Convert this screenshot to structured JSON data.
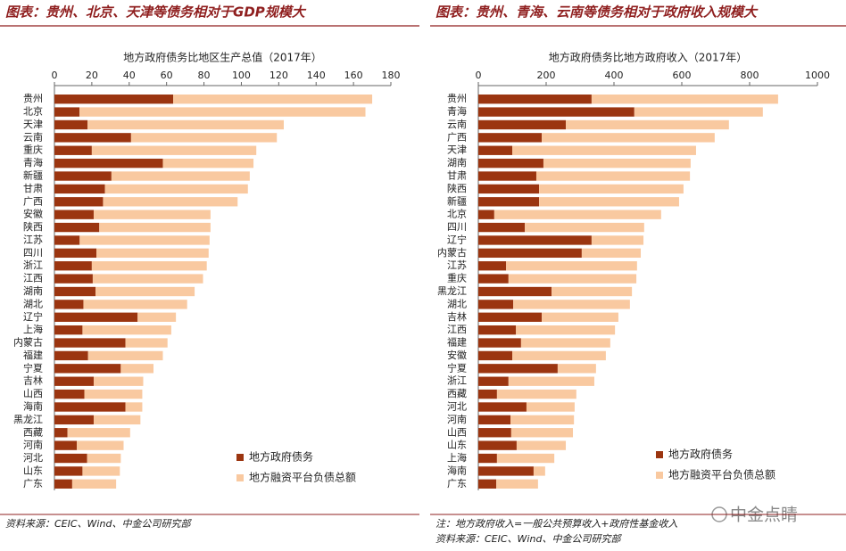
{
  "chart_data": [
    {
      "type": "stacked-bar-horizontal",
      "header": "图表：贵州、北京、天津等债务相对于GDP规模大",
      "title": "地方政府债务比地区生产总值（2017年）",
      "categories": [
        "贵州",
        "北京",
        "天津",
        "云南",
        "重庆",
        "青海",
        "新疆",
        "甘肃",
        "广西",
        "安徽",
        "陕西",
        "江苏",
        "四川",
        "浙江",
        "江西",
        "湖南",
        "湖北",
        "辽宁",
        "上海",
        "内蒙古",
        "福建",
        "宁夏",
        "吉林",
        "山西",
        "海南",
        "黑龙江",
        "西藏",
        "河南",
        "河北",
        "山东",
        "广东"
      ],
      "series": [
        {
          "name": "地方政府债务",
          "color": "#9b3510",
          "values": [
            63.5,
            13.4,
            17.7,
            41,
            20,
            58,
            30.5,
            27,
            26,
            21,
            24,
            13.5,
            22.5,
            20,
            20.5,
            22,
            15.5,
            44.5,
            15,
            38,
            18,
            35.5,
            21,
            16,
            38,
            21,
            7,
            12,
            17.5,
            15,
            9.5
          ]
        },
        {
          "name": "地方融资平台负债总额",
          "color": "#f9c9a0",
          "values": [
            106.5,
            153,
            105,
            78,
            88,
            48.5,
            74,
            76.5,
            72,
            62.5,
            59.5,
            69.5,
            60,
            61.5,
            59,
            53,
            55.5,
            20.5,
            47.5,
            22.5,
            40,
            17.5,
            26.5,
            31,
            9,
            25,
            33.5,
            25,
            18,
            20,
            23.5
          ]
        }
      ],
      "xlim": [
        0,
        180
      ],
      "xticks": [
        0,
        20,
        40,
        60,
        80,
        100,
        120,
        140,
        160,
        180
      ],
      "notes": [
        "资料来源：CEIC、Wind、中金公司研究部"
      ]
    },
    {
      "type": "stacked-bar-horizontal",
      "header": "图表：贵州、青海、云南等债务相对于政府收入规模大",
      "title": "地方政府债务比地方政府收入（2017年）",
      "categories": [
        "贵州",
        "青海",
        "云南",
        "广西",
        "天津",
        "湖南",
        "甘肃",
        "陕西",
        "新疆",
        "北京",
        "四川",
        "辽宁",
        "内蒙古",
        "江苏",
        "重庆",
        "黑龙江",
        "湖北",
        "吉林",
        "江西",
        "福建",
        "安徽",
        "宁夏",
        "浙江",
        "西藏",
        "河北",
        "河南",
        "山西",
        "山东",
        "上海",
        "海南",
        "广东"
      ],
      "series": [
        {
          "name": "地方政府债务",
          "color": "#9b3510",
          "values": [
            334,
            460,
            258,
            187,
            100,
            192,
            171,
            179,
            179,
            47,
            137,
            334,
            305,
            82,
            89,
            216,
            103,
            187,
            111,
            126,
            100,
            234,
            89,
            55,
            142,
            95,
            97,
            113,
            55,
            163,
            53
          ]
        },
        {
          "name": "地方融资平台负债总额",
          "color": "#f9c9a0",
          "values": [
            550,
            379,
            481,
            510,
            542,
            434,
            453,
            426,
            413,
            492,
            352,
            153,
            174,
            386,
            377,
            237,
            344,
            226,
            292,
            263,
            276,
            113,
            253,
            234,
            142,
            187,
            182,
            145,
            169,
            34,
            123
          ]
        }
      ],
      "xlim": [
        0,
        1000
      ],
      "xticks": [
        0,
        200,
        400,
        600,
        800,
        1000
      ],
      "notes": [
        "注：地方政府收入=一般公共预算收入+政府性基金收入",
        "资料来源：CEIC、Wind、中金公司研究部"
      ]
    }
  ],
  "watermark": "中金点睛"
}
